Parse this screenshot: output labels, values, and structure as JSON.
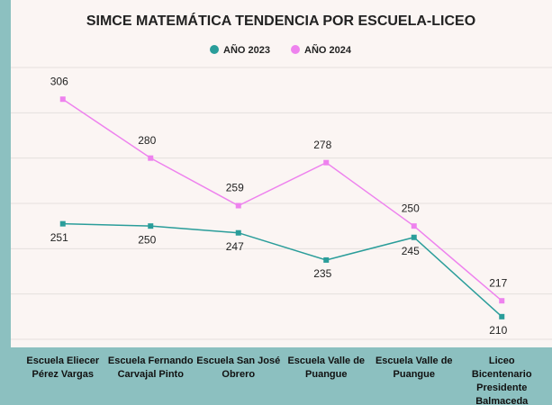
{
  "chart_data": {
    "type": "line",
    "title": "SIMCE MATEMÁTICA TENDENCIA POR ESCUELA-LICEO",
    "categories": [
      "Escuela Eliecer Pérez Vargas",
      "Escuela Fernando Carvajal Pinto",
      "Escuela San José Obrero",
      "Escuela Valle de Puangue",
      "Escuela Valle de Puangue",
      "Liceo Bicentenario Presidente Balmaceda"
    ],
    "series": [
      {
        "name": "AÑO 2023",
        "color": "#2a9d9a",
        "values": [
          251,
          250,
          247,
          235,
          245,
          210
        ]
      },
      {
        "name": "AÑO 2024",
        "color": "#ee82ee",
        "values": [
          306,
          280,
          259,
          278,
          250,
          217
        ]
      }
    ],
    "ylim": [
      200,
      320
    ],
    "yticks": [
      200,
      220,
      240,
      260,
      280,
      300,
      320
    ],
    "grid": true,
    "legend": "top"
  }
}
